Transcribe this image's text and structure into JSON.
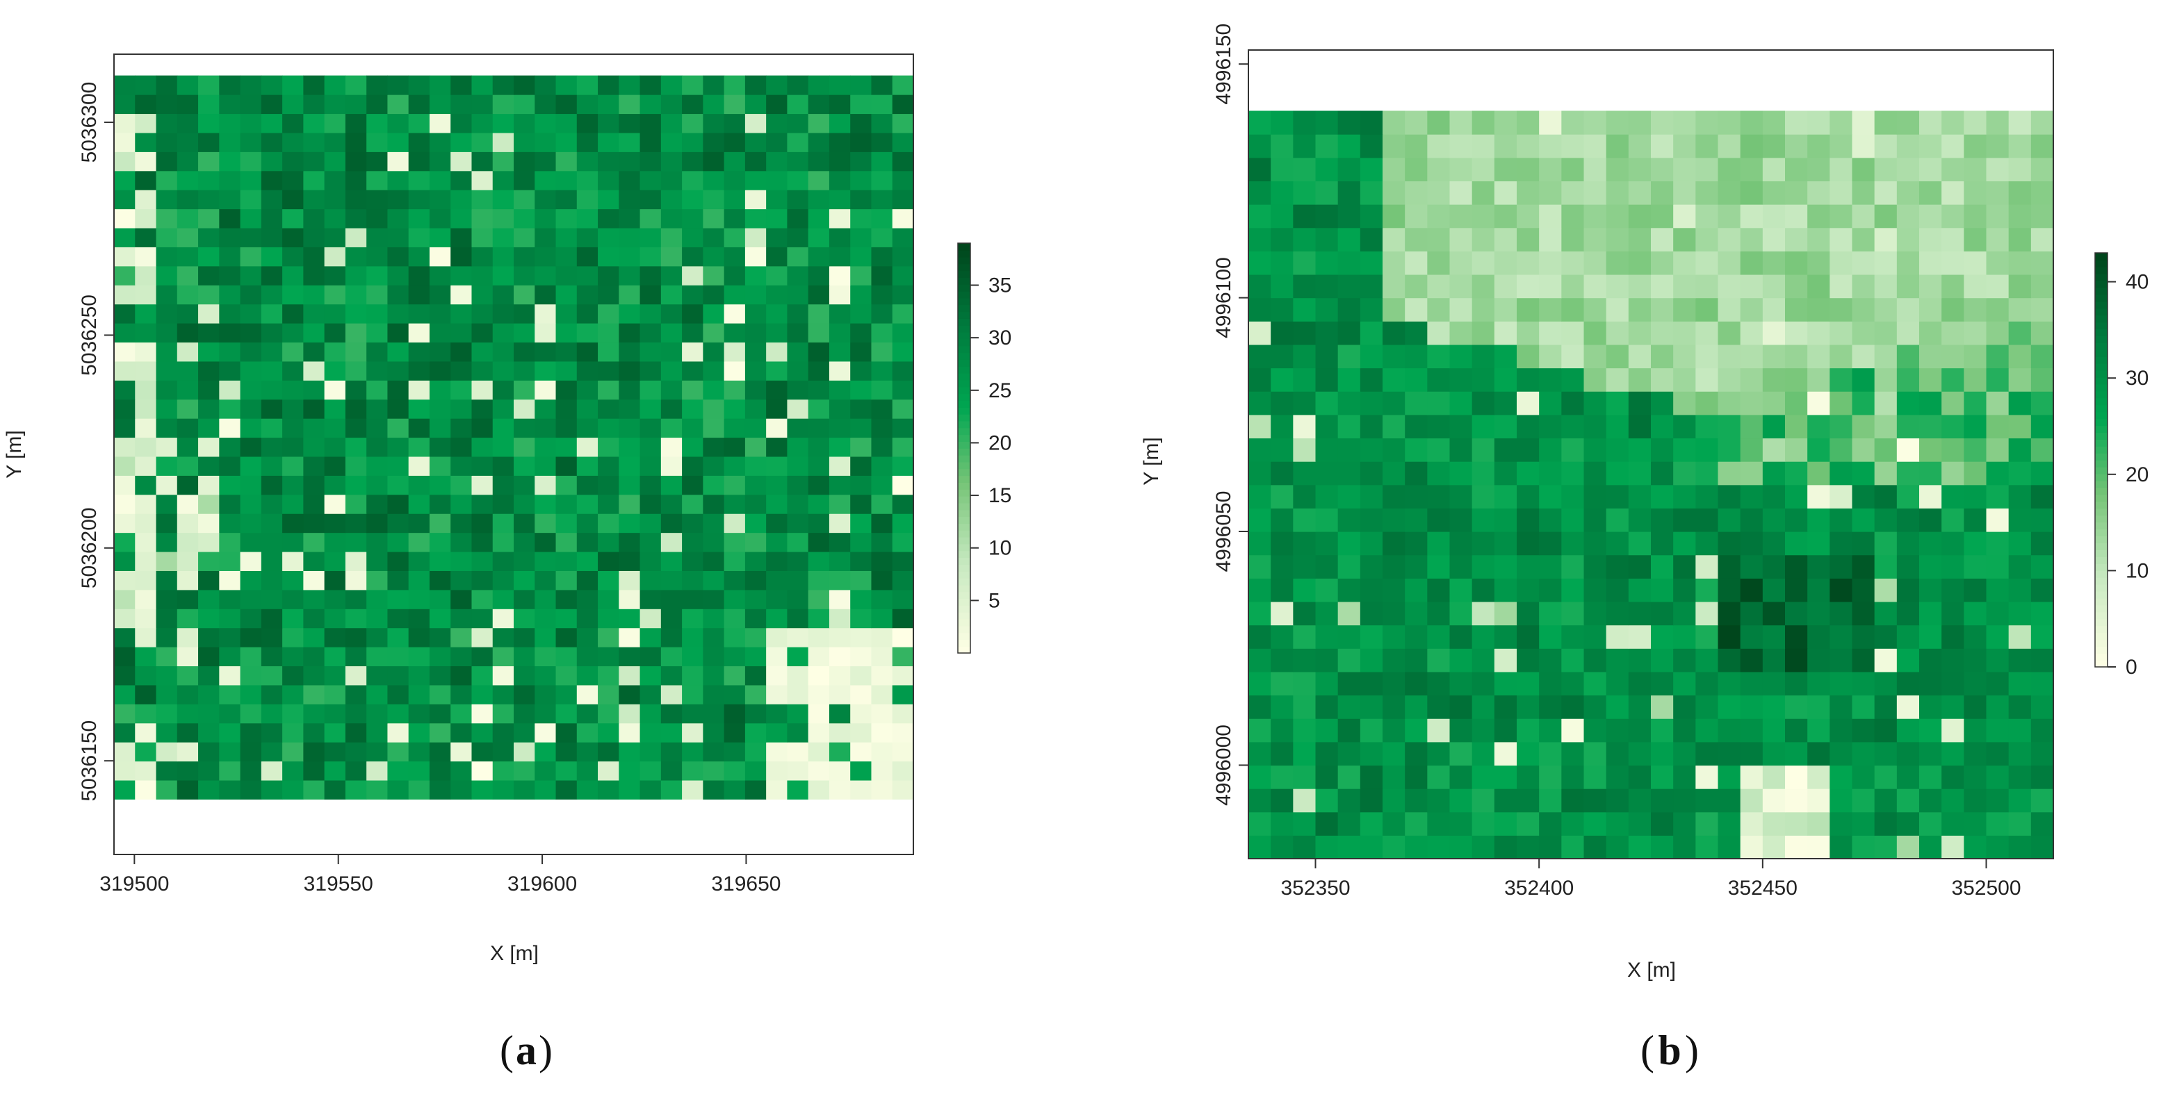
{
  "chart_data": [
    {
      "type": "heatmap",
      "panel_label": "a",
      "title": "",
      "xlabel": "X [m]",
      "ylabel": "Y [m]",
      "xlim": [
        319495,
        319691
      ],
      "ylim": [
        5036128,
        5036316
      ],
      "x_ticks": [
        319500,
        319550,
        319600,
        319650
      ],
      "x_tick_labels": [
        "319500",
        "319550",
        "319600",
        "319650"
      ],
      "y_ticks": [
        5036150,
        5036200,
        5036250,
        5036300
      ],
      "y_tick_labels": [
        "5036150",
        "5036200",
        "5036250",
        "5036300"
      ],
      "grid": {
        "cols": 38,
        "rows": 38,
        "x0": 319495,
        "x1": 319691,
        "y0": 5036141,
        "y1": 5036311
      },
      "colorbar": {
        "range": [
          0,
          39
        ],
        "ticks": [
          5,
          10,
          15,
          20,
          25,
          30,
          35
        ],
        "tick_labels": [
          "5",
          "10",
          "15",
          "20",
          "25",
          "30",
          "35"
        ]
      },
      "colors": {
        "low": "#ffffe5",
        "mid": "#00a651",
        "high": "#00441b"
      },
      "value_summary": "Canopy height raster, mostly 20-35 m with low (0-10 m) patches along the left edge and a large clearing in the lower right",
      "seed": 7
    },
    {
      "type": "heatmap",
      "panel_label": "b",
      "title": "",
      "xlabel": "X [m]",
      "ylabel": "Y [m]",
      "xlim": [
        352335,
        352515
      ],
      "ylim": [
        4995980,
        4996153
      ],
      "x_ticks": [
        352350,
        352400,
        352450,
        352500
      ],
      "x_tick_labels": [
        "352350",
        "352400",
        "352450",
        "352500"
      ],
      "y_ticks": [
        4996000,
        4996050,
        4996100,
        4996150
      ],
      "y_tick_labels": [
        "4996000",
        "4996050",
        "4996100",
        "4996150"
      ],
      "grid": {
        "cols": 36,
        "rows": 32,
        "x0": 352335,
        "x1": 352515,
        "y0": 4995980,
        "y1": 4996140
      },
      "colorbar": {
        "range": [
          0,
          43
        ],
        "ticks": [
          0,
          10,
          20,
          30,
          40
        ],
        "tick_labels": [
          "0",
          "10",
          "20",
          "30",
          "40"
        ]
      },
      "colors": {
        "low": "#ffffe5",
        "mid": "#00a651",
        "high": "#00441b"
      },
      "value_summary": "Canopy height raster: low 10-18 m across the upper band, taller 25-43 m forest in the lower half",
      "seed": 23
    }
  ],
  "panel_labels": {
    "a": "a",
    "b": "b"
  }
}
